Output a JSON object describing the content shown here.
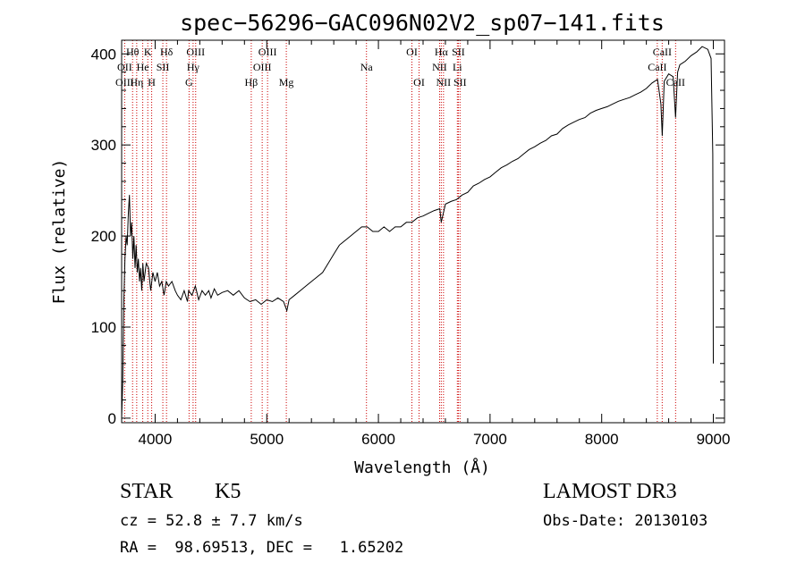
{
  "chart_data": {
    "type": "line",
    "title": "spec−56296−GAC096N02V2_sp07−141.fits",
    "xlabel": "Wavelength (Å)",
    "ylabel": "Flux (relative)",
    "xlim": [
      3700,
      9100
    ],
    "ylim": [
      -5,
      415
    ],
    "xticks": [
      4000,
      5000,
      6000,
      7000,
      8000,
      9000
    ],
    "yticks": [
      0,
      100,
      200,
      300,
      400
    ],
    "grid": false,
    "series": [
      {
        "values": [
          [
            3700,
            0
          ],
          [
            3710,
            40
          ],
          [
            3720,
            130
          ],
          [
            3730,
            175
          ],
          [
            3740,
            200
          ],
          [
            3750,
            190
          ],
          [
            3760,
            225
          ],
          [
            3770,
            245
          ],
          [
            3780,
            200
          ],
          [
            3790,
            215
          ],
          [
            3800,
            175
          ],
          [
            3810,
            200
          ],
          [
            3820,
            165
          ],
          [
            3830,
            190
          ],
          [
            3840,
            160
          ],
          [
            3850,
            175
          ],
          [
            3860,
            150
          ],
          [
            3870,
            165
          ],
          [
            3880,
            140
          ],
          [
            3890,
            170
          ],
          [
            3900,
            150
          ],
          [
            3920,
            170
          ],
          [
            3940,
            165
          ],
          [
            3960,
            140
          ],
          [
            3980,
            160
          ],
          [
            4000,
            150
          ],
          [
            4020,
            160
          ],
          [
            4040,
            145
          ],
          [
            4060,
            150
          ],
          [
            4080,
            135
          ],
          [
            4100,
            150
          ],
          [
            4120,
            145
          ],
          [
            4150,
            150
          ],
          [
            4180,
            140
          ],
          [
            4200,
            135
          ],
          [
            4230,
            130
          ],
          [
            4260,
            140
          ],
          [
            4290,
            128
          ],
          [
            4300,
            140
          ],
          [
            4330,
            135
          ],
          [
            4360,
            145
          ],
          [
            4390,
            130
          ],
          [
            4420,
            140
          ],
          [
            4450,
            135
          ],
          [
            4480,
            140
          ],
          [
            4500,
            132
          ],
          [
            4530,
            142
          ],
          [
            4560,
            135
          ],
          [
            4600,
            138
          ],
          [
            4650,
            140
          ],
          [
            4700,
            135
          ],
          [
            4750,
            140
          ],
          [
            4800,
            132
          ],
          [
            4850,
            128
          ],
          [
            4900,
            130
          ],
          [
            4950,
            125
          ],
          [
            5000,
            130
          ],
          [
            5050,
            128
          ],
          [
            5100,
            132
          ],
          [
            5150,
            128
          ],
          [
            5180,
            118
          ],
          [
            5200,
            130
          ],
          [
            5250,
            135
          ],
          [
            5300,
            140
          ],
          [
            5350,
            145
          ],
          [
            5400,
            150
          ],
          [
            5450,
            155
          ],
          [
            5500,
            160
          ],
          [
            5550,
            170
          ],
          [
            5600,
            180
          ],
          [
            5650,
            190
          ],
          [
            5700,
            195
          ],
          [
            5750,
            200
          ],
          [
            5800,
            205
          ],
          [
            5850,
            210
          ],
          [
            5900,
            210
          ],
          [
            5950,
            205
          ],
          [
            6000,
            205
          ],
          [
            6050,
            210
          ],
          [
            6100,
            205
          ],
          [
            6150,
            210
          ],
          [
            6200,
            210
          ],
          [
            6250,
            215
          ],
          [
            6300,
            215
          ],
          [
            6350,
            220
          ],
          [
            6400,
            222
          ],
          [
            6450,
            225
          ],
          [
            6500,
            228
          ],
          [
            6550,
            230
          ],
          [
            6563,
            215
          ],
          [
            6600,
            235
          ],
          [
            6650,
            238
          ],
          [
            6700,
            240
          ],
          [
            6750,
            245
          ],
          [
            6800,
            248
          ],
          [
            6850,
            255
          ],
          [
            6900,
            258
          ],
          [
            6950,
            262
          ],
          [
            7000,
            265
          ],
          [
            7050,
            270
          ],
          [
            7100,
            275
          ],
          [
            7150,
            278
          ],
          [
            7200,
            282
          ],
          [
            7250,
            285
          ],
          [
            7300,
            290
          ],
          [
            7350,
            295
          ],
          [
            7400,
            298
          ],
          [
            7450,
            302
          ],
          [
            7500,
            305
          ],
          [
            7550,
            310
          ],
          [
            7600,
            312
          ],
          [
            7650,
            318
          ],
          [
            7700,
            322
          ],
          [
            7750,
            325
          ],
          [
            7800,
            328
          ],
          [
            7850,
            330
          ],
          [
            7900,
            335
          ],
          [
            7950,
            338
          ],
          [
            8000,
            340
          ],
          [
            8050,
            342
          ],
          [
            8100,
            345
          ],
          [
            8150,
            348
          ],
          [
            8200,
            350
          ],
          [
            8250,
            352
          ],
          [
            8300,
            355
          ],
          [
            8350,
            358
          ],
          [
            8400,
            362
          ],
          [
            8450,
            368
          ],
          [
            8500,
            372
          ],
          [
            8530,
            345
          ],
          [
            8542,
            310
          ],
          [
            8560,
            370
          ],
          [
            8600,
            378
          ],
          [
            8640,
            375
          ],
          [
            8662,
            330
          ],
          [
            8680,
            380
          ],
          [
            8700,
            388
          ],
          [
            8750,
            392
          ],
          [
            8800,
            398
          ],
          [
            8850,
            402
          ],
          [
            8900,
            408
          ],
          [
            8950,
            405
          ],
          [
            8980,
            395
          ],
          [
            8995,
            290
          ],
          [
            9000,
            60
          ]
        ]
      }
    ],
    "annotations": [
      {
        "label": "Hθ",
        "x": 3798,
        "row": 0
      },
      {
        "label": "OII",
        "x": 3727,
        "row": 1
      },
      {
        "label": "OIII",
        "x": 3727,
        "row": 2
      },
      {
        "label": "He",
        "x": 3889,
        "row": 1
      },
      {
        "label": "Hη",
        "x": 3835,
        "row": 2
      },
      {
        "label": "K",
        "x": 3934,
        "row": 0
      },
      {
        "label": "SII",
        "x": 4069,
        "row": 1
      },
      {
        "label": "H",
        "x": 3969,
        "row": 2
      },
      {
        "label": "Hδ",
        "x": 4102,
        "row": 0
      },
      {
        "label": "OIII",
        "x": 4363,
        "row": 0
      },
      {
        "label": "Hγ",
        "x": 4340,
        "row": 1
      },
      {
        "label": "G",
        "x": 4304,
        "row": 2
      },
      {
        "label": "OIII",
        "x": 5007,
        "row": 0
      },
      {
        "label": "OIII",
        "x": 4959,
        "row": 1
      },
      {
        "label": "Hβ",
        "x": 4861,
        "row": 2
      },
      {
        "label": "Mg",
        "x": 5175,
        "row": 2
      },
      {
        "label": "Na",
        "x": 5893,
        "row": 1
      },
      {
        "label": "OI",
        "x": 6300,
        "row": 0
      },
      {
        "label": "OI",
        "x": 6364,
        "row": 2
      },
      {
        "label": "Hα",
        "x": 6563,
        "row": 0
      },
      {
        "label": "SII",
        "x": 6716,
        "row": 0
      },
      {
        "label": "NII",
        "x": 6548,
        "row": 1
      },
      {
        "label": "Li",
        "x": 6707,
        "row": 1
      },
      {
        "label": "NII",
        "x": 6583,
        "row": 2
      },
      {
        "label": "SII",
        "x": 6731,
        "row": 2
      },
      {
        "label": "CaII",
        "x": 8542,
        "row": 0
      },
      {
        "label": "CaII",
        "x": 8498,
        "row": 1
      },
      {
        "label": "CaII",
        "x": 8662,
        "row": 2
      }
    ],
    "lines": [
      3727,
      3798,
      3835,
      3889,
      3934,
      3969,
      4069,
      4102,
      4304,
      4340,
      4363,
      4861,
      4959,
      5007,
      5175,
      5893,
      6300,
      6364,
      6548,
      6563,
      6583,
      6707,
      6716,
      6731,
      8498,
      8542,
      8662
    ]
  },
  "info": {
    "object_type": "STAR",
    "subclass": "K5",
    "survey": "LAMOST DR3",
    "redshift": "cz = 52.8 ± 7.7 km/s",
    "obs_date": "Obs-Date: 20130103",
    "coords": "RA =  98.69513, DEC =   1.65202"
  }
}
